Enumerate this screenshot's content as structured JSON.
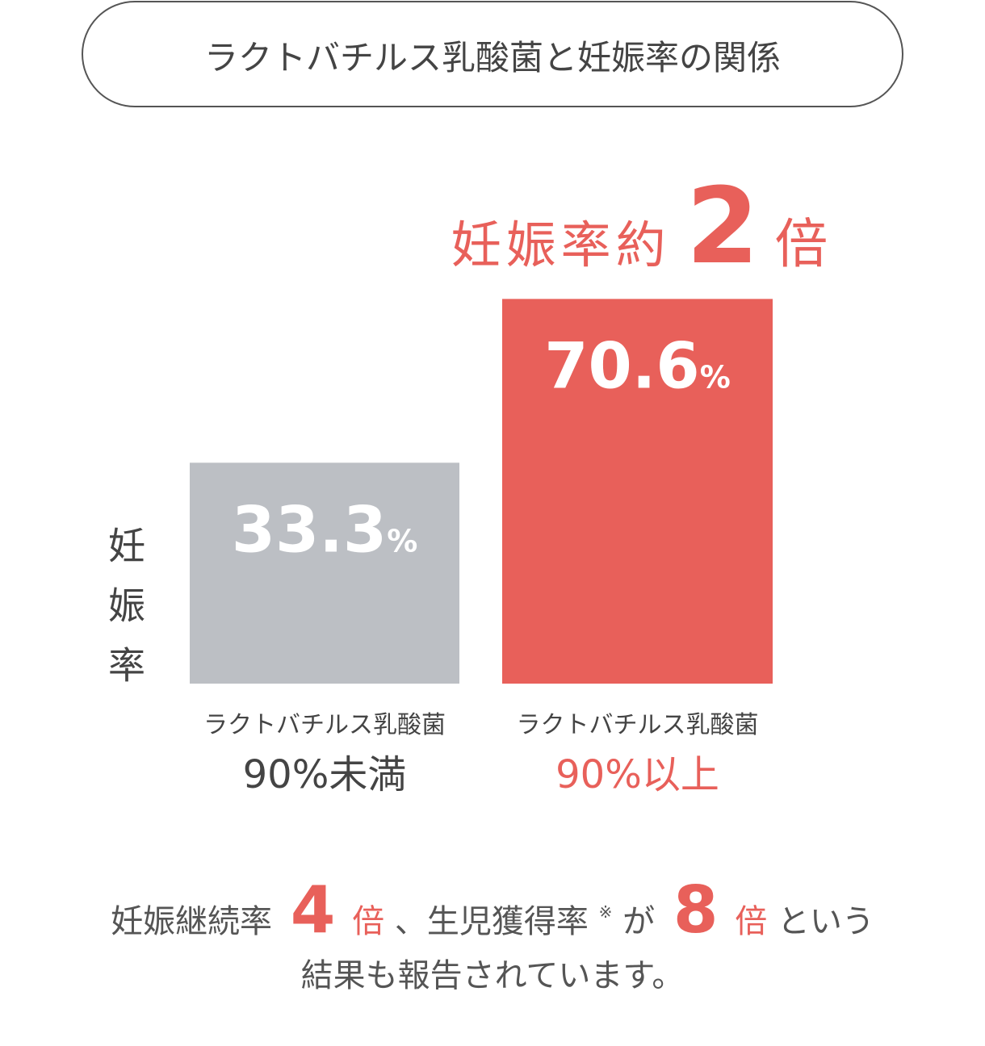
{
  "chart_data": {
    "type": "bar",
    "title": "ラクトバチルス乳酸菌と妊娠率の関係",
    "annotation": [
      "妊娠率約",
      "2",
      "倍"
    ],
    "y_label": "妊娠率",
    "categories": [
      [
        "ラクトバチルス乳酸菌",
        "90%未満"
      ],
      [
        "ラクトバチルス乳酸菌",
        "90%以上"
      ]
    ],
    "values": [
      33.3,
      70.6
    ],
    "value_labels": [
      "33.3%",
      "70.6%"
    ],
    "colors": [
      "#bcbfc4",
      "#e8605a"
    ],
    "ylim": [
      -17,
      76
    ],
    "footnote": [
      [
        "妊娠継続率",
        "4",
        "倍",
        "、生児獲得率",
        "※",
        "が",
        "8",
        "倍",
        "という"
      ],
      [
        "結果も報告されています。"
      ]
    ]
  }
}
